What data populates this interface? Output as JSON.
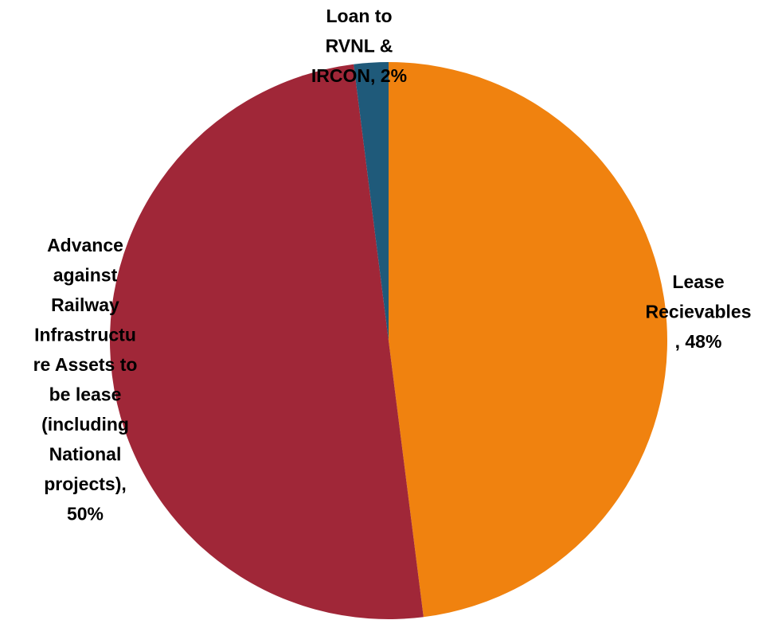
{
  "chart_data": {
    "type": "pie",
    "title": "",
    "start": "top",
    "direction": "clockwise",
    "slices": [
      {
        "label": "Lease Recievables",
        "value": 48,
        "display_lines": [
          "Lease",
          "Recievables",
          ", 48%"
        ],
        "color": "#F0820F"
      },
      {
        "label": "Advance against Railway Infrastructure Assets to be lease (including National projects)",
        "value": 50,
        "display_lines": [
          "Advance",
          "against",
          "Railway",
          "Infrastructu",
          "re Assets to",
          "be lease",
          "(including",
          "National",
          "projects),",
          "50%"
        ],
        "color": "#A02738"
      },
      {
        "label": "Loan to RVNL & IRCON",
        "value": 2,
        "display_lines": [
          "Loan to",
          "RVNL &",
          "IRCON, 2%"
        ],
        "color": "#1F5A7A"
      }
    ]
  }
}
